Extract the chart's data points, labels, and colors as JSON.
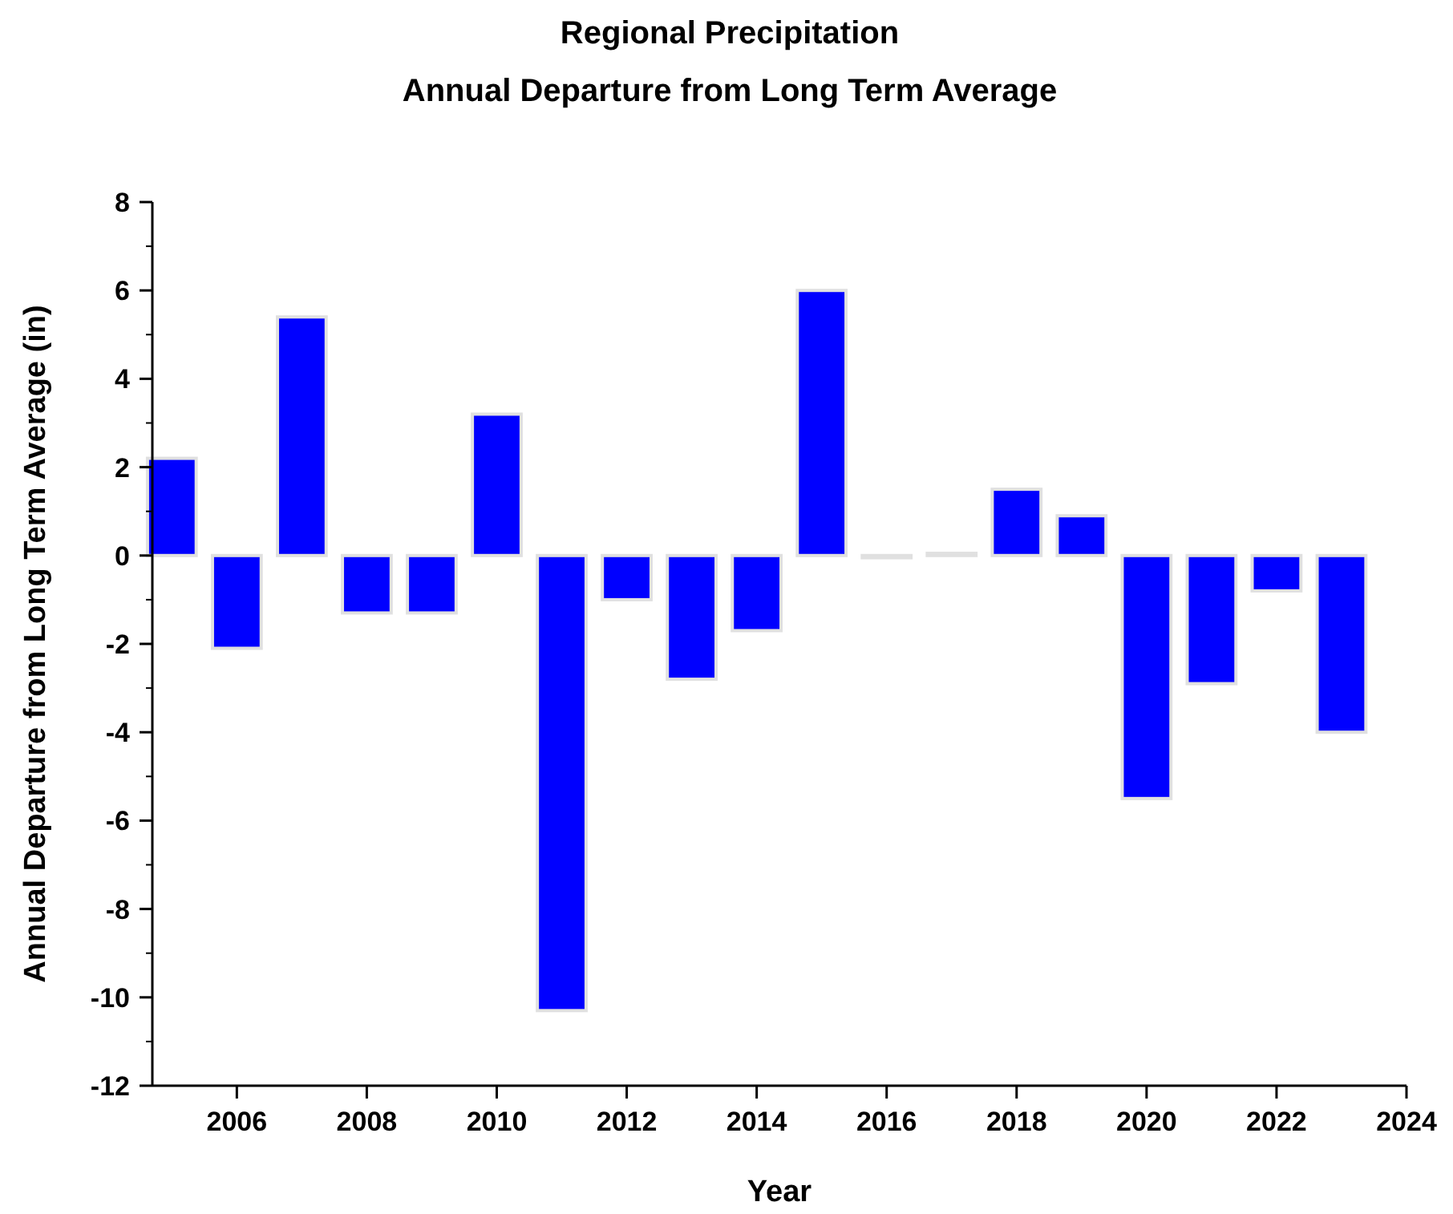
{
  "chart_data": {
    "type": "bar",
    "title": "Regional Precipitation",
    "subtitle": "Annual Departure from Long Term Average",
    "xlabel": "Year",
    "ylabel": "Annual Departure from Long Term Average (in)",
    "x": [
      2005,
      2006,
      2007,
      2008,
      2009,
      2010,
      2011,
      2012,
      2013,
      2014,
      2015,
      2016,
      2017,
      2018,
      2019,
      2020,
      2021,
      2022,
      2023
    ],
    "values": [
      2.2,
      -2.1,
      5.4,
      -1.3,
      -1.3,
      3.2,
      -10.3,
      -1.0,
      -2.8,
      -1.7,
      6.0,
      -0.05,
      0.05,
      1.5,
      0.9,
      -5.5,
      -2.9,
      -0.8,
      -4.0
    ],
    "color": "#0000ff",
    "xlim": [
      2004.7,
      2024
    ],
    "xticks": [
      2006,
      2008,
      2010,
      2012,
      2014,
      2016,
      2018,
      2020,
      2022,
      2024
    ],
    "ylim": [
      -12,
      8
    ],
    "yticks": [
      -12,
      -10,
      -8,
      -6,
      -4,
      -2,
      0,
      2,
      4,
      6,
      8
    ],
    "grid": false
  }
}
